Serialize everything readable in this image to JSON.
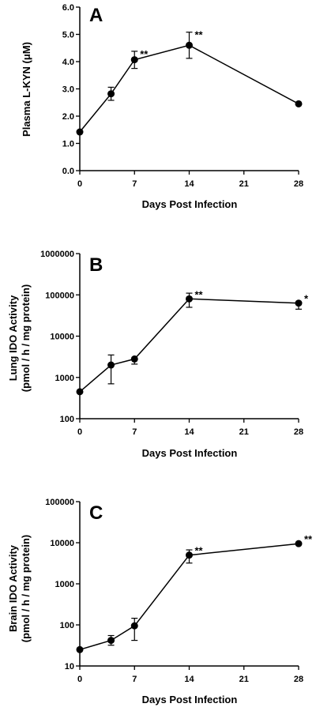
{
  "chart_data": [
    {
      "type": "line",
      "panel": "A",
      "xlabel": "Days Post Infection",
      "ylabel": "Plasma L-KYN (μM)",
      "xlim": [
        0,
        28
      ],
      "xticks": [
        0,
        7,
        14,
        21,
        28
      ],
      "ylim": [
        0,
        6
      ],
      "yscale": "linear",
      "yticks": [
        0,
        1,
        2,
        3,
        4,
        5,
        6
      ],
      "ytick_labels": [
        "0.0",
        "1.0",
        "2.0",
        "3.0",
        "4.0",
        "5.0",
        "6.0"
      ],
      "series": [
        {
          "x": [
            0,
            4,
            7,
            14,
            28
          ],
          "y": [
            1.42,
            2.82,
            4.07,
            4.6,
            2.45
          ],
          "err_low": [
            null,
            2.58,
            3.75,
            4.12,
            null
          ],
          "err_high": [
            null,
            3.06,
            4.38,
            5.08,
            null
          ],
          "significance": [
            "",
            "",
            "**",
            "**",
            ""
          ]
        }
      ]
    },
    {
      "type": "line",
      "panel": "B",
      "xlabel": "Days Post Infection",
      "ylabel_lines": [
        "Lung IDO Activity",
        "(pmol / h / mg protein)"
      ],
      "xlim": [
        0,
        28
      ],
      "xticks": [
        0,
        7,
        14,
        21,
        28
      ],
      "ylim": [
        100,
        1000000
      ],
      "yscale": "log",
      "yticks": [
        100,
        1000,
        10000,
        100000,
        1000000
      ],
      "ytick_labels": [
        "100",
        "1000",
        "10000",
        "100000",
        "1000000"
      ],
      "series": [
        {
          "x": [
            0,
            4,
            7,
            14,
            28
          ],
          "y": [
            450,
            2000,
            2800,
            80000,
            63000
          ],
          "err_low": [
            null,
            700,
            2100,
            50000,
            45000
          ],
          "err_high": [
            null,
            3500,
            null,
            110000,
            null
          ],
          "significance": [
            "",
            "",
            "",
            "**",
            "*"
          ]
        }
      ]
    },
    {
      "type": "line",
      "panel": "C",
      "xlabel": "Days Post Infection",
      "ylabel_lines": [
        "Brain IDO Activity",
        "(pmol / h / mg protein)"
      ],
      "xlim": [
        0,
        28
      ],
      "xticks": [
        0,
        7,
        14,
        21,
        28
      ],
      "ylim": [
        10,
        100000
      ],
      "yscale": "log",
      "yticks": [
        10,
        100,
        1000,
        10000,
        100000
      ],
      "ytick_labels": [
        "10",
        "100",
        "1000",
        "10000",
        "100000"
      ],
      "series": [
        {
          "x": [
            0,
            4,
            7,
            14,
            28
          ],
          "y": [
            25,
            42,
            95,
            5000,
            9500
          ],
          "err_low": [
            null,
            32,
            42,
            3200,
            null
          ],
          "err_high": [
            null,
            55,
            145,
            6700,
            null
          ],
          "significance": [
            "",
            "",
            "",
            "**",
            "**"
          ]
        }
      ]
    }
  ]
}
